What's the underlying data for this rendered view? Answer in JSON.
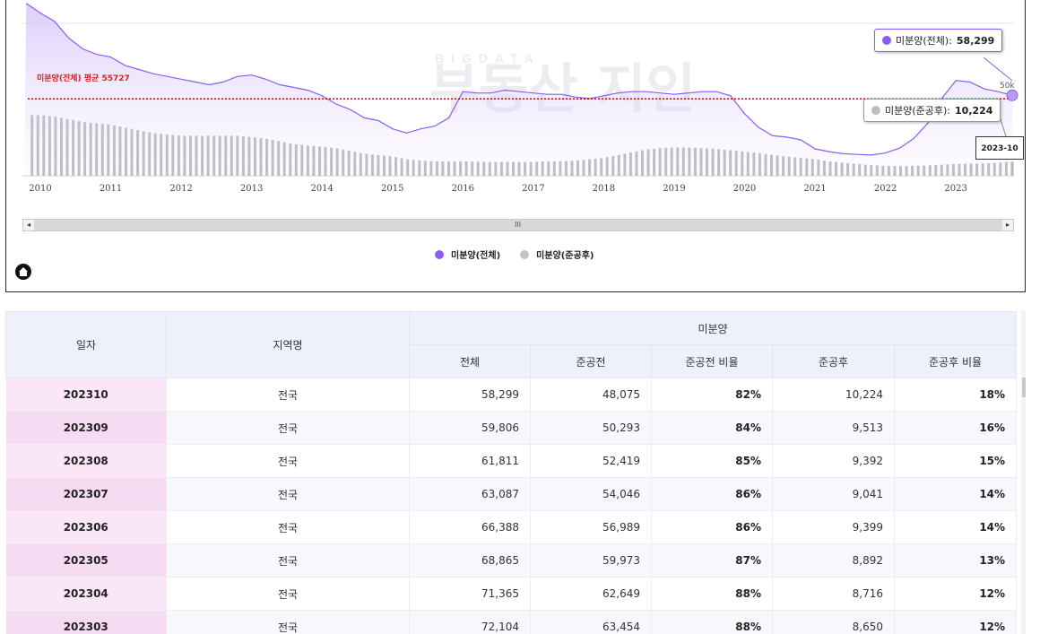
{
  "chart": {
    "avg_label": "미분양(전체) 평균 55727",
    "y_axis_label": "50k",
    "x_ticks": [
      "2010",
      "2011",
      "2012",
      "2013",
      "2014",
      "2015",
      "2016",
      "2017",
      "2018",
      "2019",
      "2020",
      "2021",
      "2022",
      "2023"
    ],
    "tooltip_total_label": "미분양(전체):",
    "tooltip_total_value": "58,299",
    "tooltip_after_label": "미분양(준공후):",
    "tooltip_after_value": "10,224",
    "date_flag": "2023-10",
    "watermark_top": "BIGDATA",
    "watermark_main": "부동산 지인",
    "scroll_grip": "III",
    "scroll_left": "◂",
    "scroll_right": "▸",
    "colors": {
      "total": "#8b5cf6",
      "after": "#b0b0b0",
      "avg": "#d00000"
    }
  },
  "chart_data": {
    "type": "area",
    "title": "",
    "xlabel": "",
    "ylabel": "",
    "x_range": [
      "2009-10",
      "2023-10"
    ],
    "y_reference": {
      "label": "미분양(전체) 평균",
      "value": 55727
    },
    "x": [
      2009.8,
      2010.0,
      2010.2,
      2010.4,
      2010.6,
      2010.8,
      2011.0,
      2011.2,
      2011.4,
      2011.6,
      2011.8,
      2012.0,
      2012.2,
      2012.4,
      2012.6,
      2012.8,
      2013.0,
      2013.2,
      2013.4,
      2013.6,
      2013.8,
      2014.0,
      2014.2,
      2014.4,
      2014.6,
      2014.8,
      2015.0,
      2015.2,
      2015.4,
      2015.6,
      2015.8,
      2016.0,
      2016.2,
      2016.4,
      2016.6,
      2016.8,
      2017.0,
      2017.2,
      2017.4,
      2017.6,
      2017.8,
      2018.0,
      2018.2,
      2018.4,
      2018.6,
      2018.8,
      2019.0,
      2019.2,
      2019.4,
      2019.6,
      2019.8,
      2020.0,
      2020.2,
      2020.4,
      2020.6,
      2020.8,
      2021.0,
      2021.2,
      2021.4,
      2021.6,
      2021.8,
      2022.0,
      2022.2,
      2022.4,
      2022.6,
      2022.8,
      2023.0,
      2023.2,
      2023.4,
      2023.6,
      2023.8
    ],
    "series": [
      {
        "name": "미분양(전체)",
        "values": [
          125000,
          118000,
          112000,
          100000,
          92000,
          88000,
          86000,
          80000,
          77000,
          74000,
          72000,
          70000,
          68000,
          66000,
          68000,
          72000,
          73000,
          70000,
          66000,
          64000,
          62000,
          58000,
          52000,
          48000,
          42000,
          40000,
          34000,
          31000,
          34000,
          36000,
          42000,
          61000,
          60000,
          60000,
          62000,
          61000,
          60000,
          59000,
          59000,
          57000,
          56000,
          58000,
          60000,
          61000,
          61000,
          60000,
          59000,
          60000,
          61000,
          61000,
          58000,
          45000,
          35000,
          29000,
          28000,
          26000,
          19500,
          17500,
          16000,
          15500,
          15000,
          16500,
          20000,
          27000,
          38000,
          56000,
          69000,
          68000,
          63000,
          61000,
          58299
        ]
      },
      {
        "name": "미분양(준공후)",
        "values": [
          44000,
          44000,
          43000,
          41000,
          39000,
          38000,
          37000,
          35000,
          33000,
          31000,
          30000,
          29000,
          29000,
          29000,
          29000,
          29000,
          28000,
          27000,
          25000,
          23000,
          22000,
          21000,
          20000,
          18000,
          16000,
          15000,
          14000,
          12000,
          11000,
          10500,
          10500,
          10500,
          10200,
          10000,
          10000,
          10000,
          10000,
          10500,
          10500,
          11000,
          12000,
          13000,
          15000,
          17000,
          19000,
          20000,
          20500,
          20500,
          20000,
          19500,
          18500,
          17500,
          16500,
          15000,
          14000,
          13000,
          12000,
          10500,
          9500,
          8500,
          7700,
          7200,
          7000,
          7200,
          7500,
          8000,
          8600,
          8800,
          9000,
          9500,
          10224
        ]
      }
    ]
  },
  "legend": [
    {
      "label": "미분양(전체)",
      "color": "#8b5cf6"
    },
    {
      "label": "미분양(준공후)",
      "color": "#c4c4c4"
    }
  ],
  "table": {
    "headers": {
      "date": "일자",
      "region": "지역명",
      "group": "미분양",
      "total": "전체",
      "pre": "준공전",
      "pre_ratio": "준공전 비율",
      "post": "준공후",
      "post_ratio": "준공후 비율"
    },
    "rows": [
      {
        "date": "202310",
        "region": "전국",
        "total": "58,299",
        "pre": "48,075",
        "pre_ratio": "82%",
        "post": "10,224",
        "post_ratio": "18%"
      },
      {
        "date": "202309",
        "region": "전국",
        "total": "59,806",
        "pre": "50,293",
        "pre_ratio": "84%",
        "post": "9,513",
        "post_ratio": "16%"
      },
      {
        "date": "202308",
        "region": "전국",
        "total": "61,811",
        "pre": "52,419",
        "pre_ratio": "85%",
        "post": "9,392",
        "post_ratio": "15%"
      },
      {
        "date": "202307",
        "region": "전국",
        "total": "63,087",
        "pre": "54,046",
        "pre_ratio": "86%",
        "post": "9,041",
        "post_ratio": "14%"
      },
      {
        "date": "202306",
        "region": "전국",
        "total": "66,388",
        "pre": "56,989",
        "pre_ratio": "86%",
        "post": "9,399",
        "post_ratio": "14%"
      },
      {
        "date": "202305",
        "region": "전국",
        "total": "68,865",
        "pre": "59,973",
        "pre_ratio": "87%",
        "post": "8,892",
        "post_ratio": "13%"
      },
      {
        "date": "202304",
        "region": "전국",
        "total": "71,365",
        "pre": "62,649",
        "pre_ratio": "88%",
        "post": "8,716",
        "post_ratio": "12%"
      },
      {
        "date": "202303",
        "region": "전국",
        "total": "72,104",
        "pre": "63,454",
        "pre_ratio": "88%",
        "post": "8,650",
        "post_ratio": "12%"
      }
    ]
  }
}
